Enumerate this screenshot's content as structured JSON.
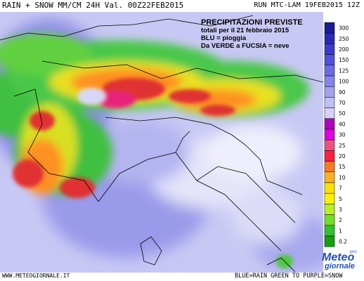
{
  "header": {
    "title": "RAIN + SNOW MM/CM 24H Val. 00Z22FEB2015",
    "run": "RUN MTC-LAM 19FEB2015 12Z"
  },
  "info_box": {
    "line1": "PRECIPITAZIONI PREVISTE",
    "line2": "totali per il 21 febbraio 2015",
    "line3": "BLU = pioggia",
    "line4": "Da VERDE a FUCSIA = neve"
  },
  "legend": {
    "levels": [
      "300",
      "250",
      "200",
      "150",
      "125",
      "100",
      "90",
      "70",
      "50",
      "40",
      "30",
      "25",
      "20",
      "15",
      "10",
      "7",
      "5",
      "3",
      "2",
      "1",
      "0.2"
    ],
    "colors": [
      "#1a1a9a",
      "#2a2ab8",
      "#3a3ad0",
      "#5050e0",
      "#6a6ae8",
      "#8484ee",
      "#a2a2f0",
      "#c0c0f6",
      "#d9d0fa",
      "#b000c0",
      "#e000e0",
      "#f05080",
      "#ff2040",
      "#ff7820",
      "#ffb020",
      "#ffe000",
      "#fff000",
      "#b8f020",
      "#70e020",
      "#30c030",
      "#10a010"
    ]
  },
  "footer": {
    "site": "WWW.METEOGIORNALE.IT",
    "legend_text": "BLUE=RAIN   GREEN TO PURPLE=SNOW"
  },
  "logo": {
    "line1": "Meteo",
    "line2": "giornale",
    "mark": "pro"
  }
}
